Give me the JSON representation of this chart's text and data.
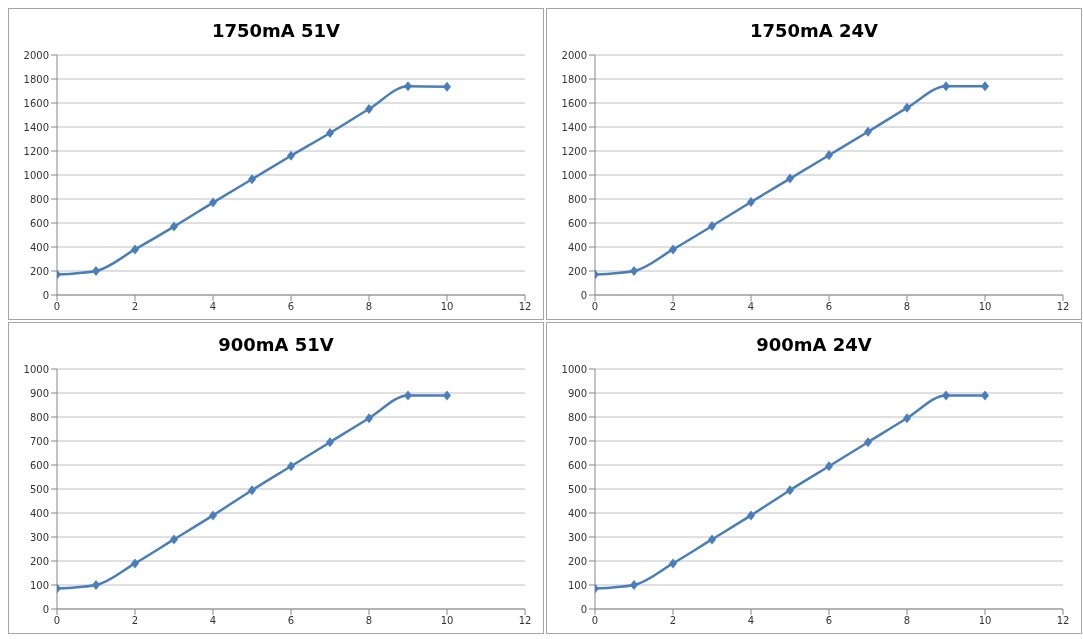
{
  "chart_data": [
    {
      "type": "line",
      "title": "1750mA 51V",
      "x": [
        0,
        1,
        2,
        3,
        4,
        5,
        6,
        7,
        8,
        9,
        10
      ],
      "values": [
        170,
        200,
        380,
        570,
        770,
        965,
        1160,
        1350,
        1550,
        1740,
        1735
      ],
      "color": "#4a7ebb",
      "xlim": [
        0,
        12
      ],
      "xticks": [
        0,
        2,
        4,
        6,
        8,
        10,
        12
      ],
      "ylim": [
        0,
        2000
      ],
      "yticks": [
        0,
        200,
        400,
        600,
        800,
        1000,
        1200,
        1400,
        1600,
        1800,
        2000
      ],
      "grid": "y",
      "marker": "diamond",
      "legend": false
    },
    {
      "type": "line",
      "title": "1750mA 24V",
      "x": [
        0,
        1,
        2,
        3,
        4,
        5,
        6,
        7,
        8,
        9,
        10
      ],
      "values": [
        170,
        200,
        380,
        575,
        775,
        970,
        1165,
        1360,
        1560,
        1740,
        1740
      ],
      "color": "#4a7ebb",
      "xlim": [
        0,
        12
      ],
      "xticks": [
        0,
        2,
        4,
        6,
        8,
        10,
        12
      ],
      "ylim": [
        0,
        2000
      ],
      "yticks": [
        0,
        200,
        400,
        600,
        800,
        1000,
        1200,
        1400,
        1600,
        1800,
        2000
      ],
      "grid": "y",
      "marker": "diamond",
      "legend": false
    },
    {
      "type": "line",
      "title": "900mA 51V",
      "x": [
        0,
        1,
        2,
        3,
        4,
        5,
        6,
        7,
        8,
        9,
        10
      ],
      "values": [
        85,
        100,
        190,
        290,
        390,
        495,
        595,
        695,
        795,
        890,
        890
      ],
      "color": "#4a7ebb",
      "xlim": [
        0,
        12
      ],
      "xticks": [
        0,
        2,
        4,
        6,
        8,
        10,
        12
      ],
      "ylim": [
        0,
        1000
      ],
      "yticks": [
        0,
        100,
        200,
        300,
        400,
        500,
        600,
        700,
        800,
        900,
        1000
      ],
      "grid": "y",
      "marker": "diamond",
      "legend": false
    },
    {
      "type": "line",
      "title": "900mA 24V",
      "x": [
        0,
        1,
        2,
        3,
        4,
        5,
        6,
        7,
        8,
        9,
        10
      ],
      "values": [
        85,
        100,
        190,
        290,
        390,
        495,
        595,
        695,
        795,
        890,
        890
      ],
      "color": "#4a7ebb",
      "xlim": [
        0,
        12
      ],
      "xticks": [
        0,
        2,
        4,
        6,
        8,
        10,
        12
      ],
      "ylim": [
        0,
        1000
      ],
      "yticks": [
        0,
        100,
        200,
        300,
        400,
        500,
        600,
        700,
        800,
        900,
        1000
      ],
      "grid": "y",
      "marker": "diamond",
      "legend": false
    }
  ]
}
